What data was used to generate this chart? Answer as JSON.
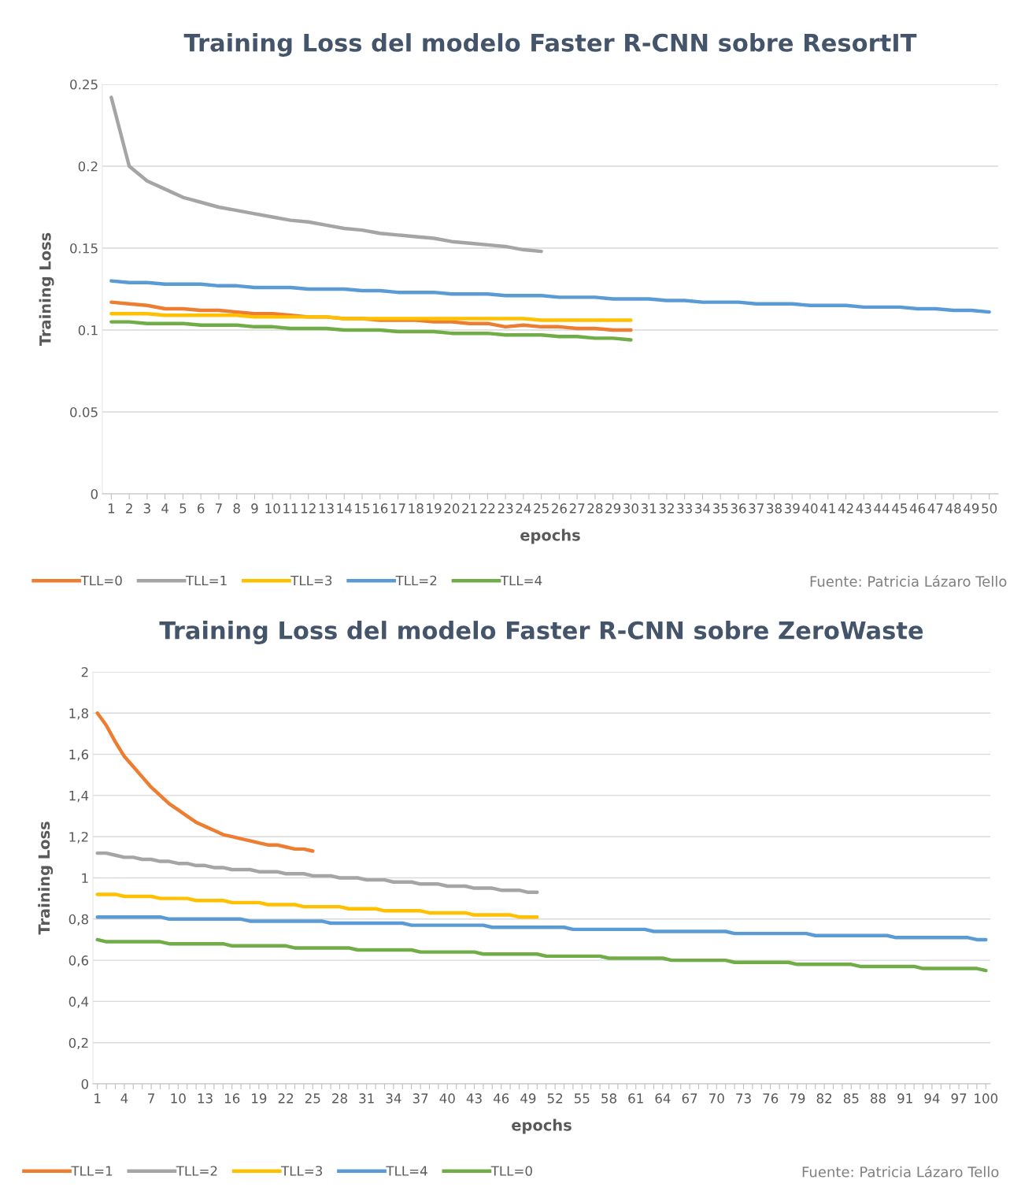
{
  "chart_data": [
    {
      "type": "line",
      "title": "Training Loss del modelo Faster R-CNN sobre ResortIT",
      "xlabel": "epochs",
      "ylabel": "Training Loss",
      "categories": [
        "1",
        "2",
        "3",
        "4",
        "5",
        "6",
        "7",
        "8",
        "9",
        "10",
        "11",
        "12",
        "13",
        "14",
        "15",
        "16",
        "17",
        "18",
        "19",
        "20",
        "21",
        "22",
        "23",
        "24",
        "25",
        "26",
        "27",
        "28",
        "29",
        "30",
        "31",
        "32",
        "33",
        "34",
        "35",
        "36",
        "37",
        "38",
        "39",
        "40",
        "41",
        "42",
        "43",
        "44",
        "45",
        "46",
        "47",
        "48",
        "49",
        "50"
      ],
      "ylim": [
        0,
        0.25
      ],
      "yticks": [
        0,
        0.05,
        0.1,
        0.15,
        0.2,
        0.25
      ],
      "grid": "y",
      "legend": "bottom",
      "annotations": [
        "Fuente: Patricia Lázaro Tello"
      ],
      "series": [
        {
          "name": "TLL=0",
          "color": "#ed7d31",
          "values": [
            0.117,
            0.116,
            0.115,
            0.113,
            0.113,
            0.112,
            0.112,
            0.111,
            0.11,
            0.11,
            0.109,
            0.108,
            0.108,
            0.107,
            0.107,
            0.106,
            0.106,
            0.106,
            0.105,
            0.105,
            0.104,
            0.104,
            0.102,
            0.103,
            0.102,
            0.102,
            0.101,
            0.101,
            0.1,
            0.1,
            null,
            null,
            null,
            null,
            null,
            null,
            null,
            null,
            null,
            null,
            null,
            null,
            null,
            null,
            null,
            null,
            null,
            null,
            null,
            null
          ]
        },
        {
          "name": "TLL=1",
          "color": "#a5a5a5",
          "values": [
            0.242,
            0.2,
            0.191,
            0.186,
            0.181,
            0.178,
            0.175,
            0.173,
            0.171,
            0.169,
            0.167,
            0.166,
            0.164,
            0.162,
            0.161,
            0.159,
            0.158,
            0.157,
            0.156,
            0.154,
            0.153,
            0.152,
            0.151,
            0.149,
            0.148,
            null,
            null,
            null,
            null,
            null,
            null,
            null,
            null,
            null,
            null,
            null,
            null,
            null,
            null,
            null,
            null,
            null,
            null,
            null,
            null,
            null,
            null,
            null,
            null,
            null
          ]
        },
        {
          "name": "TLL=3",
          "color": "#ffc000",
          "values": [
            0.11,
            0.11,
            0.11,
            0.109,
            0.109,
            0.109,
            0.109,
            0.109,
            0.108,
            0.108,
            0.108,
            0.108,
            0.108,
            0.107,
            0.107,
            0.107,
            0.107,
            0.107,
            0.107,
            0.107,
            0.107,
            0.107,
            0.107,
            0.107,
            0.106,
            0.106,
            0.106,
            0.106,
            0.106,
            0.106,
            null,
            null,
            null,
            null,
            null,
            null,
            null,
            null,
            null,
            null,
            null,
            null,
            null,
            null,
            null,
            null,
            null,
            null,
            null,
            null
          ]
        },
        {
          "name": "TLL=2",
          "color": "#5b9bd5",
          "values": [
            0.13,
            0.129,
            0.129,
            0.128,
            0.128,
            0.128,
            0.127,
            0.127,
            0.126,
            0.126,
            0.126,
            0.125,
            0.125,
            0.125,
            0.124,
            0.124,
            0.123,
            0.123,
            0.123,
            0.122,
            0.122,
            0.122,
            0.121,
            0.121,
            0.121,
            0.12,
            0.12,
            0.12,
            0.119,
            0.119,
            0.119,
            0.118,
            0.118,
            0.117,
            0.117,
            0.117,
            0.116,
            0.116,
            0.116,
            0.115,
            0.115,
            0.115,
            0.114,
            0.114,
            0.114,
            0.113,
            0.113,
            0.112,
            0.112,
            0.111
          ]
        },
        {
          "name": "TLL=4",
          "color": "#70ad47",
          "values": [
            0.105,
            0.105,
            0.104,
            0.104,
            0.104,
            0.103,
            0.103,
            0.103,
            0.102,
            0.102,
            0.101,
            0.101,
            0.101,
            0.1,
            0.1,
            0.1,
            0.099,
            0.099,
            0.099,
            0.098,
            0.098,
            0.098,
            0.097,
            0.097,
            0.097,
            0.096,
            0.096,
            0.095,
            0.095,
            0.094,
            null,
            null,
            null,
            null,
            null,
            null,
            null,
            null,
            null,
            null,
            null,
            null,
            null,
            null,
            null,
            null,
            null,
            null,
            null,
            null
          ]
        }
      ]
    },
    {
      "type": "line",
      "title": "Training Loss del modelo Faster R-CNN sobre ZeroWaste",
      "xlabel": "epochs",
      "ylabel": "Training Loss",
      "categories": [
        "1",
        null,
        null,
        "4",
        null,
        null,
        "7",
        null,
        null,
        "10",
        null,
        null,
        "13",
        null,
        null,
        "16",
        null,
        null,
        "19",
        null,
        null,
        "22",
        null,
        null,
        "25",
        null,
        null,
        "28",
        null,
        null,
        "31",
        null,
        null,
        "34",
        null,
        null,
        "37",
        null,
        null,
        "40",
        null,
        null,
        "43",
        null,
        null,
        "46",
        null,
        null,
        "49",
        null,
        null,
        "52",
        null,
        null,
        "55",
        null,
        null,
        "58",
        null,
        null,
        "61",
        null,
        null,
        "64",
        null,
        null,
        "67",
        null,
        null,
        "70",
        null,
        null,
        "73",
        null,
        null,
        "76",
        null,
        null,
        "79",
        null,
        null,
        "82",
        null,
        null,
        "85",
        null,
        null,
        "88",
        null,
        null,
        "91",
        null,
        null,
        "94",
        null,
        null,
        "97",
        null,
        null,
        "100"
      ],
      "ylim": [
        0,
        2
      ],
      "yticks": [
        {
          "value": 0,
          "label": "0"
        },
        {
          "value": 0.2,
          "label": "0,2"
        },
        {
          "value": 0.4,
          "label": "0,4"
        },
        {
          "value": 0.6,
          "label": "0,6"
        },
        {
          "value": 0.8,
          "label": "0,8"
        },
        {
          "value": 1,
          "label": "1"
        },
        {
          "value": 1.2,
          "label": "1,2"
        },
        {
          "value": 1.4,
          "label": "1,4"
        },
        {
          "value": 1.6,
          "label": "1,6"
        },
        {
          "value": 1.8,
          "label": "1,8"
        },
        {
          "value": 2,
          "label": "2"
        }
      ],
      "grid": "y",
      "legend": "bottom",
      "annotations": [
        "Fuente: Patricia Lázaro Tello"
      ],
      "series": [
        {
          "name": "TLL=1",
          "color": "#ed7d31",
          "values": [
            1.8,
            1.74,
            1.66,
            1.59,
            1.54,
            1.49,
            1.44,
            1.4,
            1.36,
            1.33,
            1.3,
            1.27,
            1.25,
            1.23,
            1.21,
            1.2,
            1.19,
            1.18,
            1.17,
            1.16,
            1.16,
            1.15,
            1.14,
            1.14,
            1.13,
            null,
            null,
            null,
            null,
            null,
            null,
            null,
            null,
            null,
            null,
            null,
            null,
            null,
            null,
            null,
            null,
            null,
            null,
            null,
            null,
            null,
            null,
            null,
            null,
            null,
            null,
            null,
            null,
            null,
            null,
            null,
            null,
            null,
            null,
            null,
            null,
            null,
            null,
            null,
            null,
            null,
            null,
            null,
            null,
            null,
            null,
            null,
            null,
            null,
            null,
            null,
            null,
            null,
            null,
            null,
            null,
            null,
            null,
            null,
            null,
            null,
            null,
            null,
            null,
            null,
            null,
            null,
            null,
            null,
            null,
            null,
            null,
            null,
            null,
            null
          ]
        },
        {
          "name": "TLL=2",
          "color": "#a5a5a5",
          "values": [
            1.12,
            1.12,
            1.11,
            1.1,
            1.1,
            1.09,
            1.09,
            1.08,
            1.08,
            1.07,
            1.07,
            1.06,
            1.06,
            1.05,
            1.05,
            1.04,
            1.04,
            1.04,
            1.03,
            1.03,
            1.03,
            1.02,
            1.02,
            1.02,
            1.01,
            1.01,
            1.01,
            1.0,
            1.0,
            1.0,
            0.99,
            0.99,
            0.99,
            0.98,
            0.98,
            0.98,
            0.97,
            0.97,
            0.97,
            0.96,
            0.96,
            0.96,
            0.95,
            0.95,
            0.95,
            0.94,
            0.94,
            0.94,
            0.93,
            0.93,
            null,
            null,
            null,
            null,
            null,
            null,
            null,
            null,
            null,
            null,
            null,
            null,
            null,
            null,
            null,
            null,
            null,
            null,
            null,
            null,
            null,
            null,
            null,
            null,
            null,
            null,
            null,
            null,
            null,
            null,
            null,
            null,
            null,
            null,
            null,
            null,
            null,
            null,
            null,
            null,
            null,
            null,
            null,
            null,
            null,
            null,
            null,
            null,
            null,
            null
          ]
        },
        {
          "name": "TLL=3",
          "color": "#ffc000",
          "values": [
            0.92,
            0.92,
            0.92,
            0.91,
            0.91,
            0.91,
            0.91,
            0.9,
            0.9,
            0.9,
            0.9,
            0.89,
            0.89,
            0.89,
            0.89,
            0.88,
            0.88,
            0.88,
            0.88,
            0.87,
            0.87,
            0.87,
            0.87,
            0.86,
            0.86,
            0.86,
            0.86,
            0.86,
            0.85,
            0.85,
            0.85,
            0.85,
            0.84,
            0.84,
            0.84,
            0.84,
            0.84,
            0.83,
            0.83,
            0.83,
            0.83,
            0.83,
            0.82,
            0.82,
            0.82,
            0.82,
            0.82,
            0.81,
            0.81,
            0.81,
            null,
            null,
            null,
            null,
            null,
            null,
            null,
            null,
            null,
            null,
            null,
            null,
            null,
            null,
            null,
            null,
            null,
            null,
            null,
            null,
            null,
            null,
            null,
            null,
            null,
            null,
            null,
            null,
            null,
            null,
            null,
            null,
            null,
            null,
            null,
            null,
            null,
            null,
            null,
            null,
            null,
            null,
            null,
            null,
            null,
            null,
            null,
            null,
            null,
            null
          ]
        },
        {
          "name": "TLL=4",
          "color": "#5b9bd5",
          "values": [
            0.81,
            0.81,
            0.81,
            0.81,
            0.81,
            0.81,
            0.81,
            0.81,
            0.8,
            0.8,
            0.8,
            0.8,
            0.8,
            0.8,
            0.8,
            0.8,
            0.8,
            0.79,
            0.79,
            0.79,
            0.79,
            0.79,
            0.79,
            0.79,
            0.79,
            0.79,
            0.78,
            0.78,
            0.78,
            0.78,
            0.78,
            0.78,
            0.78,
            0.78,
            0.78,
            0.77,
            0.77,
            0.77,
            0.77,
            0.77,
            0.77,
            0.77,
            0.77,
            0.77,
            0.76,
            0.76,
            0.76,
            0.76,
            0.76,
            0.76,
            0.76,
            0.76,
            0.76,
            0.75,
            0.75,
            0.75,
            0.75,
            0.75,
            0.75,
            0.75,
            0.75,
            0.75,
            0.74,
            0.74,
            0.74,
            0.74,
            0.74,
            0.74,
            0.74,
            0.74,
            0.74,
            0.73,
            0.73,
            0.73,
            0.73,
            0.73,
            0.73,
            0.73,
            0.73,
            0.73,
            0.72,
            0.72,
            0.72,
            0.72,
            0.72,
            0.72,
            0.72,
            0.72,
            0.72,
            0.71,
            0.71,
            0.71,
            0.71,
            0.71,
            0.71,
            0.71,
            0.71,
            0.71,
            0.7,
            0.7
          ]
        },
        {
          "name": "TLL=0",
          "color": "#70ad47",
          "values": [
            0.7,
            0.69,
            0.69,
            0.69,
            0.69,
            0.69,
            0.69,
            0.69,
            0.68,
            0.68,
            0.68,
            0.68,
            0.68,
            0.68,
            0.68,
            0.67,
            0.67,
            0.67,
            0.67,
            0.67,
            0.67,
            0.67,
            0.66,
            0.66,
            0.66,
            0.66,
            0.66,
            0.66,
            0.66,
            0.65,
            0.65,
            0.65,
            0.65,
            0.65,
            0.65,
            0.65,
            0.64,
            0.64,
            0.64,
            0.64,
            0.64,
            0.64,
            0.64,
            0.63,
            0.63,
            0.63,
            0.63,
            0.63,
            0.63,
            0.63,
            0.62,
            0.62,
            0.62,
            0.62,
            0.62,
            0.62,
            0.62,
            0.61,
            0.61,
            0.61,
            0.61,
            0.61,
            0.61,
            0.61,
            0.6,
            0.6,
            0.6,
            0.6,
            0.6,
            0.6,
            0.6,
            0.59,
            0.59,
            0.59,
            0.59,
            0.59,
            0.59,
            0.59,
            0.58,
            0.58,
            0.58,
            0.58,
            0.58,
            0.58,
            0.58,
            0.57,
            0.57,
            0.57,
            0.57,
            0.57,
            0.57,
            0.57,
            0.56,
            0.56,
            0.56,
            0.56,
            0.56,
            0.56,
            0.56,
            0.55
          ]
        }
      ]
    }
  ]
}
